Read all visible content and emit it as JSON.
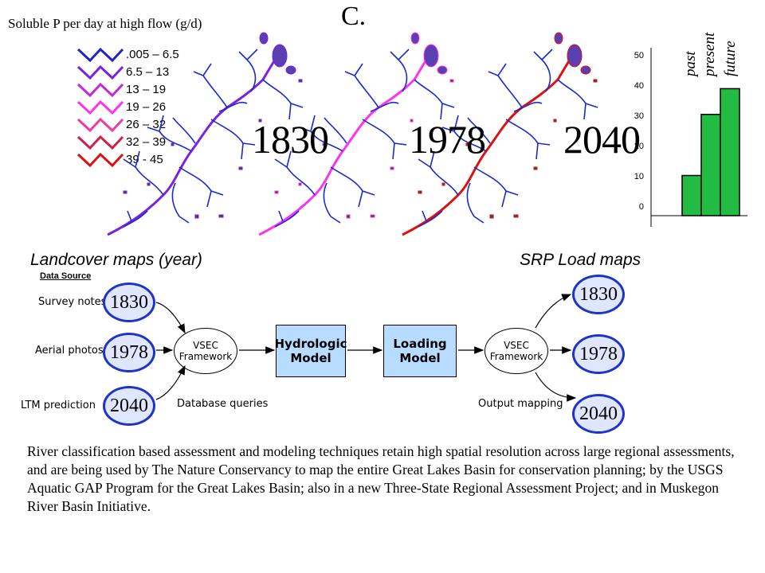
{
  "header": {
    "title": "Soluble P per day at high flow (g/d)",
    "panel_letter": "C."
  },
  "legend": {
    "items": [
      {
        "label": ".005 – 6.5",
        "color": "#2222cc"
      },
      {
        "label": "6.5 – 13",
        "color": "#7a22e0"
      },
      {
        "label": "13 – 19",
        "color": "#c22ad8"
      },
      {
        "label": "19 – 26",
        "color": "#ff33ee"
      },
      {
        "label": "26 – 32",
        "color": "#f03aa0"
      },
      {
        "label": "32 – 39",
        "color": "#d0204a"
      },
      {
        "label": "39 - 45",
        "color": "#dd1111"
      }
    ]
  },
  "maps": {
    "years": [
      "1830",
      "1978",
      "2040"
    ],
    "landcover_caption": "Landcover maps (year)",
    "load_caption": "SRP Load maps"
  },
  "bar_chart": {
    "chart_data": {
      "type": "bar",
      "categories": [
        "past",
        "present",
        "future"
      ],
      "values": [
        12.5,
        31.5,
        39.5
      ],
      "ylim": [
        0,
        50
      ],
      "yticks": [
        "0",
        "10",
        "20",
        "30",
        "40",
        "50"
      ],
      "bar_color": "#22bb44"
    }
  },
  "flow": {
    "data_source_label": "Data Source",
    "sources": [
      {
        "label": "Survey notes",
        "year": "1830"
      },
      {
        "label": "Aerial photos",
        "year": "1978"
      },
      {
        "label": "LTM prediction",
        "year": "2040"
      }
    ],
    "vsec_left": "VSEC Framework",
    "hydrologic_model": "Hydrologic Model",
    "loading_model": "Loading Model",
    "vsec_right": "VSEC Framework",
    "database_queries": "Database queries",
    "output_mapping": "Output mapping",
    "outputs": [
      "1830",
      "1978",
      "2040"
    ]
  },
  "paragraph": {
    "text": "River classification based assessment and modeling techniques retain high spatial resolution across large regional assessments, and are being used by The Nature Conservancy to map the entire Great Lakes Basin for conservation planning; by the USGS Aquatic GAP Program for the Great Lakes Basin; also in a new Three-State Regional Assessment Project; and in Muskegon River Basin Initiative."
  }
}
